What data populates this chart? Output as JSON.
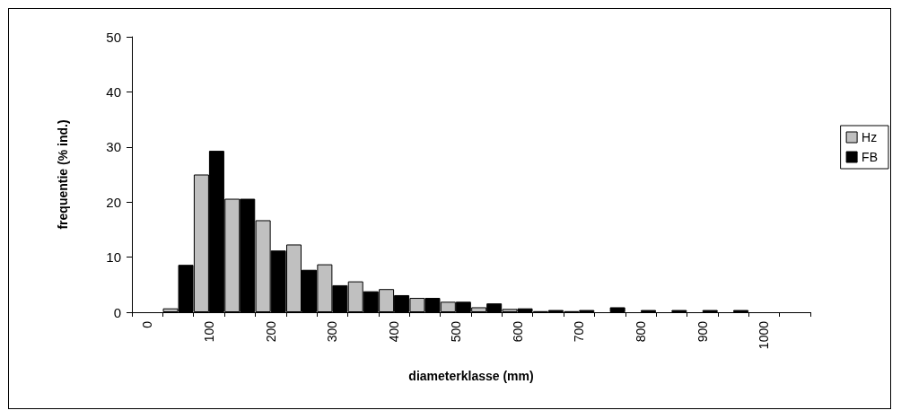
{
  "chart_data": {
    "type": "bar",
    "xlabel": "diameterklasse (mm)",
    "ylabel": "frequentie (% ind.)",
    "categories": [
      "0",
      null,
      "100",
      null,
      "200",
      null,
      "300",
      null,
      "400",
      null,
      "500",
      null,
      "600",
      null,
      "700",
      null,
      "800",
      null,
      "900",
      null,
      "1000",
      null
    ],
    "series": [
      {
        "name": "Hz",
        "color": "#c0c0c0",
        "values": [
          null,
          0.7,
          25,
          20.6,
          16.7,
          12.3,
          8.7,
          5.6,
          4.2,
          2.6,
          1.9,
          0.9,
          0.6,
          0.2,
          0.2,
          null,
          null,
          null,
          null,
          null,
          null,
          null
        ]
      },
      {
        "name": "FB",
        "color": "#000000",
        "values": [
          null,
          8.6,
          29.3,
          20.6,
          11.2,
          7.7,
          4.9,
          3.8,
          3.1,
          2.6,
          1.9,
          1.6,
          0.7,
          0.4,
          0.4,
          0.9,
          0.4,
          0.4,
          0.4,
          0.4,
          null,
          null
        ]
      }
    ],
    "ylim": [
      0,
      50
    ],
    "yticks": [
      0,
      10,
      20,
      30,
      40,
      50
    ],
    "grid": false,
    "legend": "right"
  }
}
